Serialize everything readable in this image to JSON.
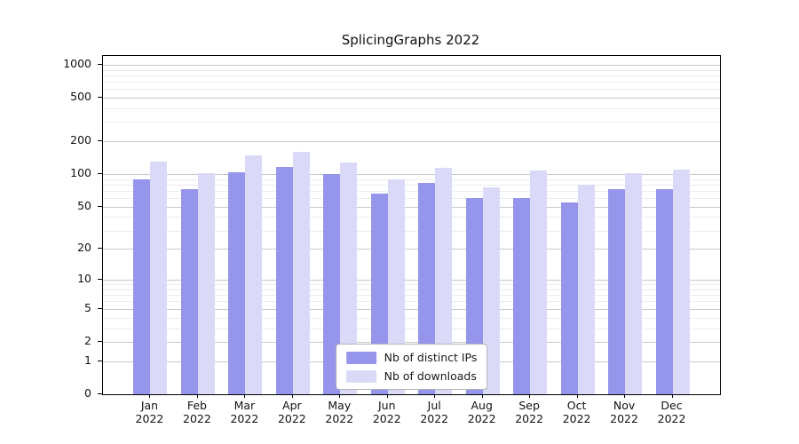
{
  "title": "SplicingGraphs 2022",
  "colors": {
    "ips": "#9595ec",
    "downloads": "#dadaf8",
    "grid_major": "#c9c9c9",
    "grid_minor": "#ececec",
    "axis": "#000000",
    "legend_border": "#b3b3b3"
  },
  "legend": {
    "items": [
      {
        "label": "Nb of distinct IPs",
        "series": "ips"
      },
      {
        "label": "Nb of downloads",
        "series": "downloads"
      }
    ]
  },
  "chart_data": {
    "type": "bar",
    "title": "SplicingGraphs 2022",
    "scale": "log10(1 + count)",
    "categories": [
      "Jan",
      "Feb",
      "Mar",
      "Apr",
      "May",
      "Jun",
      "Jul",
      "Aug",
      "Sep",
      "Oct",
      "Nov",
      "Dec"
    ],
    "year_label": "2022",
    "series": [
      {
        "name": "Nb of distinct IPs",
        "key": "ips",
        "values": [
          90,
          73,
          104,
          117,
          100,
          66,
          83,
          60,
          60,
          55,
          73,
          73
        ]
      },
      {
        "name": "Nb of downloads",
        "key": "downloads",
        "values": [
          130,
          103,
          148,
          160,
          128,
          90,
          115,
          75,
          108,
          80,
          103,
          110
        ]
      }
    ],
    "yticks": [
      0,
      1,
      2,
      5,
      10,
      20,
      50,
      100,
      200,
      500,
      1000
    ],
    "ylim": [
      0,
      1400
    ],
    "xlabel": "",
    "ylabel": "",
    "grid": true,
    "legend_position": "bottom-center"
  }
}
